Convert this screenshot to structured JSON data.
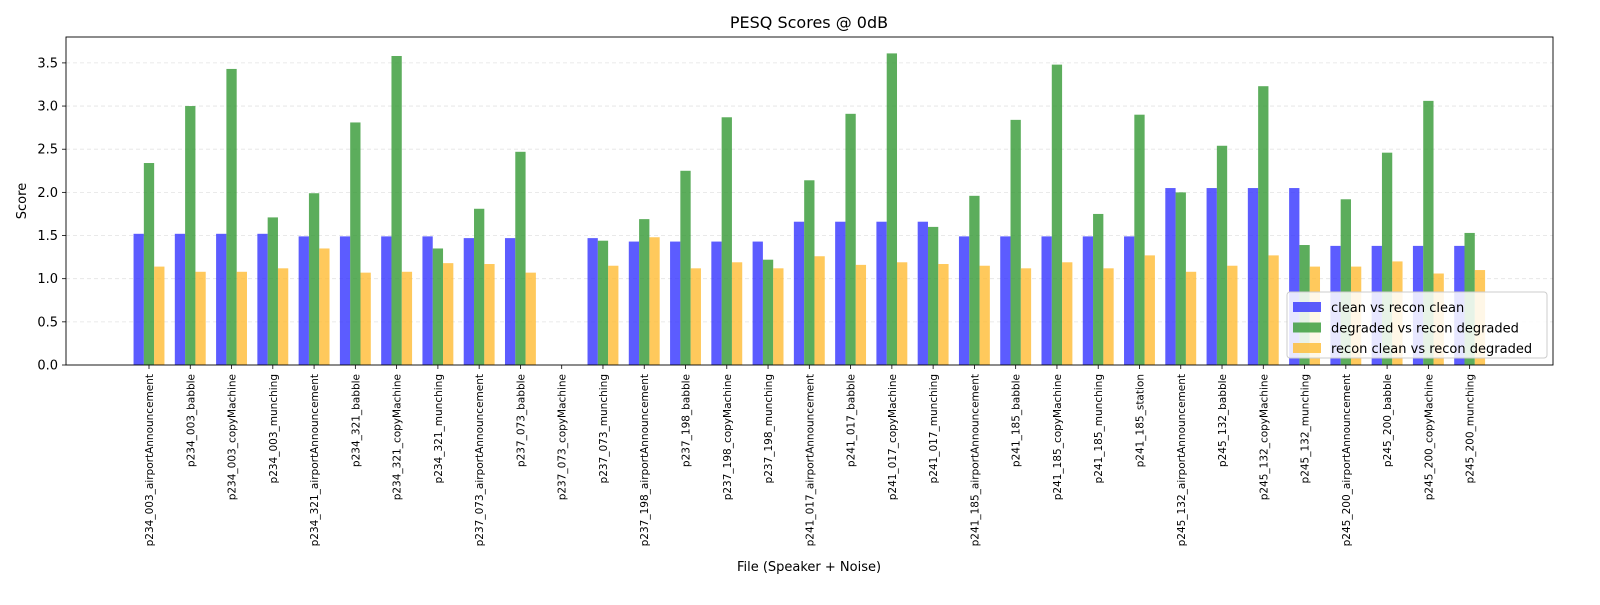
{
  "chart_data": {
    "type": "bar",
    "title": "PESQ Scores @ 0dB",
    "xlabel": "File (Speaker + Noise)",
    "ylabel": "Score",
    "ylim": [
      0,
      3.8
    ],
    "yticks": [
      "0.0",
      "0.5",
      "1.0",
      "1.5",
      "2.0",
      "2.5",
      "3.0",
      "3.5"
    ],
    "grid": "y-axis dashed",
    "legend_position": "lower-right",
    "categories": [
      "p234_003_airportAnnouncement",
      "p234_003_babble",
      "p234_003_copyMachine",
      "p234_003_munching",
      "p234_321_airportAnnouncement",
      "p234_321_babble",
      "p234_321_copyMachine",
      "p234_321_munching",
      "p237_073_airportAnnouncement",
      "p237_073_babble",
      "p237_073_copyMachine",
      "p237_073_munching",
      "p237_198_airportAnnouncement",
      "p237_198_babble",
      "p237_198_copyMachine",
      "p237_198_munching",
      "p241_017_airportAnnouncement",
      "p241_017_babble",
      "p241_017_copyMachine",
      "p241_017_munching",
      "p241_185_airportAnnouncement",
      "p241_185_babble",
      "p241_185_copyMachine",
      "p241_185_munching",
      "p241_185_station",
      "p245_132_airportAnnouncement",
      "p245_132_babble",
      "p245_132_copyMachine",
      "p245_132_munching",
      "p245_200_airportAnnouncement",
      "p245_200_babble",
      "p245_200_copyMachine",
      "p245_200_munching"
    ],
    "series": [
      {
        "name": "clean vs recon clean",
        "color": "#3333ff",
        "values": [
          1.52,
          1.52,
          1.52,
          1.52,
          1.49,
          1.49,
          1.49,
          1.49,
          1.47,
          1.47,
          null,
          1.47,
          1.43,
          1.43,
          1.43,
          1.43,
          1.66,
          1.66,
          1.66,
          1.66,
          1.49,
          1.49,
          1.49,
          1.49,
          1.49,
          2.05,
          2.05,
          2.05,
          2.05,
          1.38,
          1.38,
          1.38,
          1.38
        ]
      },
      {
        "name": "degraded vs recon degraded",
        "color": "#339933",
        "values": [
          2.34,
          3.0,
          3.43,
          1.71,
          1.99,
          2.81,
          3.58,
          1.35,
          1.81,
          2.47,
          null,
          1.44,
          1.69,
          2.25,
          2.87,
          1.22,
          2.14,
          2.91,
          3.61,
          1.6,
          1.96,
          2.84,
          3.48,
          1.75,
          2.9,
          2.0,
          2.54,
          3.23,
          1.39,
          1.92,
          2.46,
          3.06,
          1.53
        ]
      },
      {
        "name": "recon clean vs recon degraded",
        "color": "#ffbb33",
        "values": [
          1.14,
          1.08,
          1.08,
          1.12,
          1.35,
          1.07,
          1.08,
          1.18,
          1.17,
          1.07,
          null,
          1.15,
          1.48,
          1.12,
          1.19,
          1.12,
          1.26,
          1.16,
          1.19,
          1.17,
          1.15,
          1.12,
          1.19,
          1.12,
          1.27,
          1.08,
          1.15,
          1.27,
          1.14,
          1.14,
          1.2,
          1.06,
          1.1
        ]
      }
    ]
  }
}
